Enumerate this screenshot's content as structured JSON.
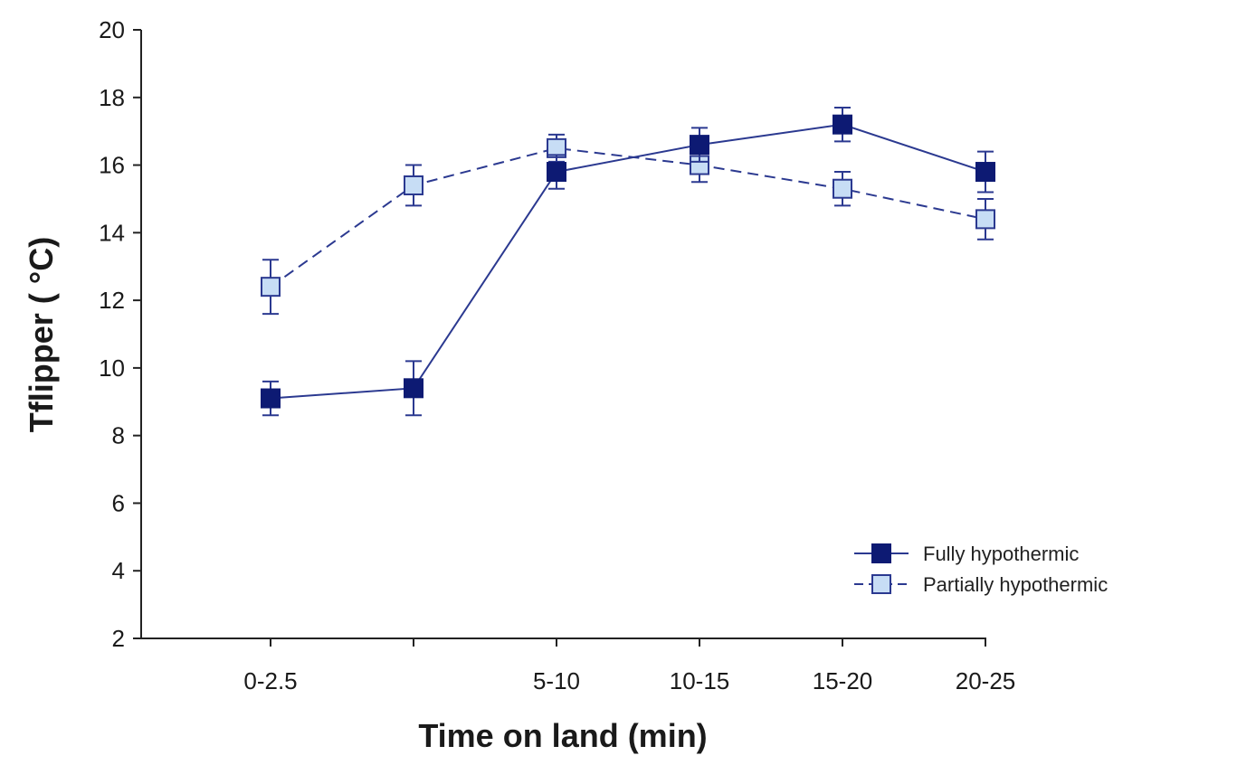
{
  "chart_data": {
    "type": "line",
    "title": "",
    "xlabel": "Time on land (min)",
    "ylabel": "Tflipper ( °C)",
    "ylim": [
      2,
      20
    ],
    "yticks": [
      "2",
      "4",
      "6",
      "8",
      "10",
      "12",
      "14",
      "16",
      "18",
      "20"
    ],
    "categories": [
      "0-2.5",
      "",
      "5-10",
      "10-15",
      "15-20",
      "20-25"
    ],
    "grid": false,
    "legend_position": "bottom-right",
    "series": [
      {
        "name": "Fully hypothermic",
        "line_style": "solid",
        "marker_fill": "#0d1a73",
        "marker_stroke": "#0d1a73",
        "line_color": "#2b3990",
        "values": [
          9.1,
          9.4,
          15.8,
          16.6,
          17.2,
          15.8
        ],
        "err": [
          0.5,
          0.8,
          0.5,
          0.5,
          0.5,
          0.6
        ]
      },
      {
        "name": "Partially hypothermic",
        "line_style": "dashed",
        "marker_fill": "#c7ddf5",
        "marker_stroke": "#2b3990",
        "line_color": "#2b3990",
        "values": [
          12.4,
          15.4,
          16.5,
          16.0,
          15.3,
          14.4
        ],
        "err": [
          0.8,
          0.6,
          0.4,
          0.5,
          0.5,
          0.6
        ]
      }
    ]
  }
}
